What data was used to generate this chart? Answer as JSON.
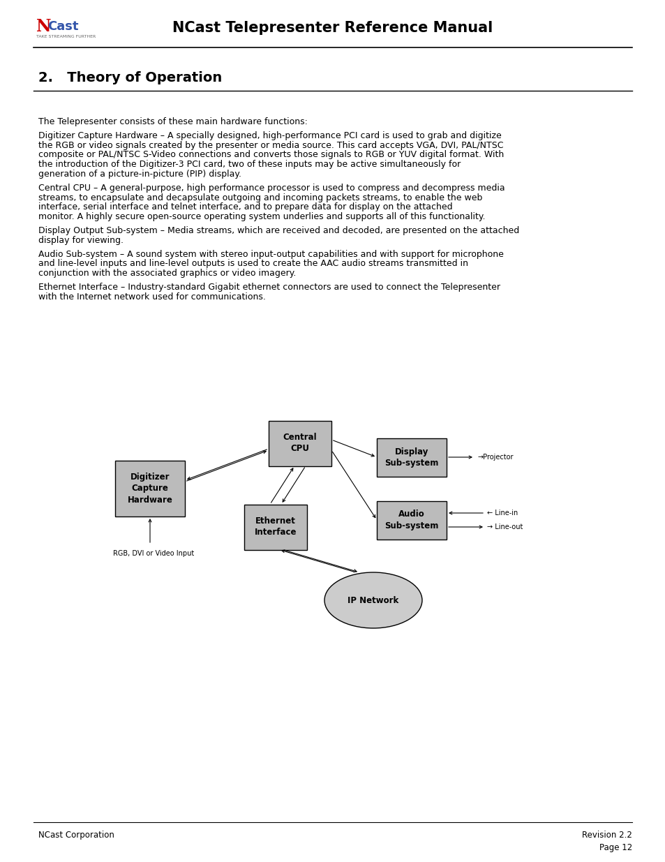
{
  "page_title": "NCast Telepresenter Reference Manual",
  "section_title": "2.   Theory of Operation",
  "logo_subtitle": "TAKE STREAMING FURTHER",
  "body_paragraphs": [
    {
      "indent": false,
      "text": "The Telepresenter consists of these main hardware functions:"
    },
    {
      "indent": true,
      "text": "Digitizer Capture Hardware – A specially designed, high-performance PCI card is used to grab and digitize the RGB or video signals created by the presenter or media source. This card accepts VGA, DVI, PAL/NTSC composite or PAL/NTSC S-Video connections and converts those signals to RGB or YUV digital format. With the introduction of the Digitizer-3 PCI card, two of these inputs may be active simultaneously for generation of a picture-in-picture (PIP) display."
    },
    {
      "indent": true,
      "text": "Central CPU – A general-purpose, high performance processor is used to compress and decompress media streams, to encapsulate and decapsulate outgoing and incoming packets streams, to enable the web interface, serial interface and telnet interface, and to prepare data for display on the attached monitor. A highly secure open-source operating system underlies and supports all of this functionality."
    },
    {
      "indent": true,
      "text": "Display Output Sub-system – Media streams, which are received and decoded, are presented on the attached display for viewing."
    },
    {
      "indent": true,
      "text": "Audio Sub-system – A sound system with stereo input-output capabilities and with support for microphone and line-level inputs and line-level outputs is used to create the AAC audio streams transmitted in conjunction with the associated graphics or video imagery."
    },
    {
      "indent": true,
      "text": "Ethernet Interface – Industry-standard Gigabit ethernet connectors are used to connect the Telepresenter with the Internet network used for communications."
    }
  ],
  "footer_left": "NCast Corporation",
  "footer_right": "Revision 2.2",
  "footer_page": "Page 12",
  "bg_color": "#ffffff",
  "box_fill": "#bbbbbb",
  "box_edge": "#000000",
  "ellipse_fill": "#cccccc",
  "text_color": "#000000",
  "diagram": {
    "cpu_label": "Central\nCPU",
    "dig_label": "Digitizer\nCapture\nHardware",
    "eth_label": "Ethernet\nInterface",
    "disp_label": "Display\nSub-system",
    "aud_label": "Audio\nSub-system",
    "ip_label": "IP Network",
    "rgb_label": "RGB, DVI or Video Input",
    "proj_label": "→Projector",
    "linein_label": "← Line-in",
    "lineout_label": "→ Line-out"
  }
}
